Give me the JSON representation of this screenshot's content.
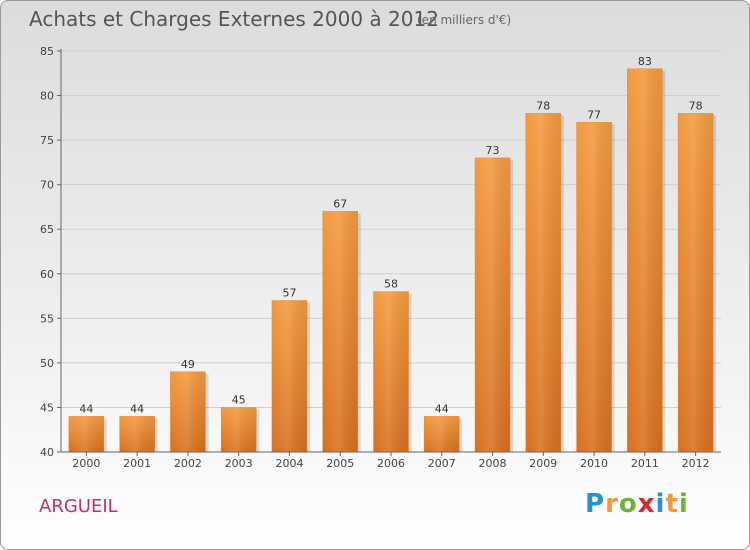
{
  "chart_data": {
    "type": "bar",
    "title": "Achats et Charges Externes 2000 à 2012",
    "subtitle": "(en milliers d'€)",
    "categories": [
      "2000",
      "2001",
      "2002",
      "2003",
      "2004",
      "2005",
      "2006",
      "2007",
      "2008",
      "2009",
      "2010",
      "2011",
      "2012"
    ],
    "values": [
      44,
      44,
      49,
      45,
      57,
      67,
      58,
      44,
      73,
      78,
      77,
      83,
      78
    ],
    "ylim": [
      40,
      85
    ],
    "yticks": [
      40,
      45,
      50,
      55,
      60,
      65,
      70,
      75,
      80,
      85
    ],
    "grid": true,
    "bar_color": "#f39a3e",
    "bar_color_dark": "#d8701e"
  },
  "place_name": "ARGUEIL",
  "logo": {
    "letters": [
      "P",
      "r",
      "o",
      "x",
      "i",
      "t",
      "i"
    ],
    "colors": [
      "#2a8fd4",
      "#f39a3e",
      "#6db33f",
      "#d9262b",
      "#2a8fd4",
      "#f39a3e",
      "#6db33f"
    ]
  }
}
